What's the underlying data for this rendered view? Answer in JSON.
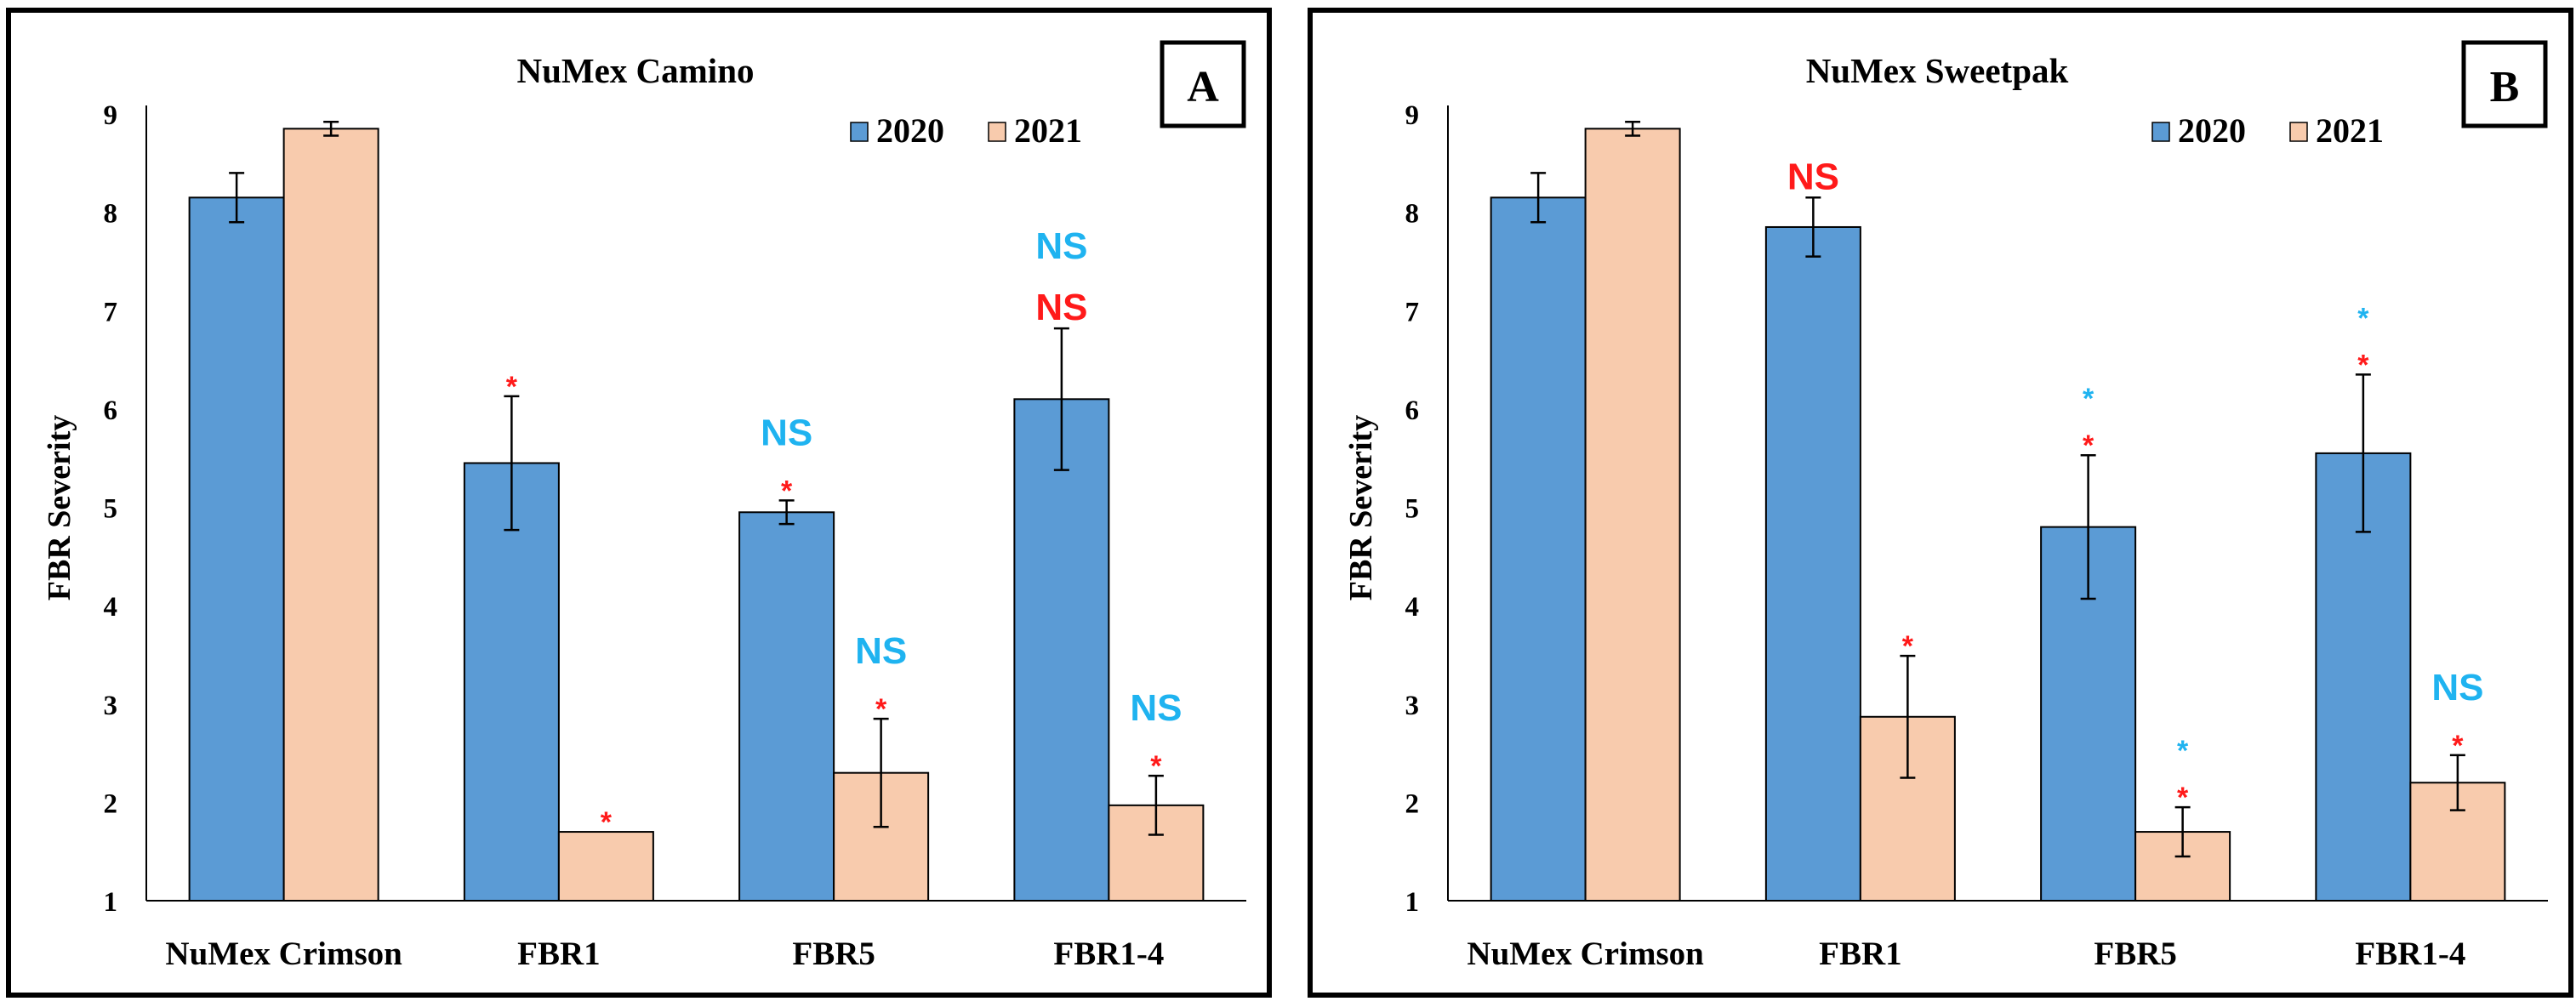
{
  "colors": {
    "series_2020": "#5b9bd5",
    "series_2021": "#f8cbad",
    "ns_blue": "#1fb3f0",
    "sig_red": "#ff1a1a"
  },
  "chart_data": [
    {
      "type": "bar",
      "panel_label": "A",
      "title": "NuMex Camino",
      "xlabel": "",
      "ylabel": "FBR Severity",
      "ylim": [
        1,
        9
      ],
      "yticks": [
        "1",
        "2",
        "3",
        "4",
        "5",
        "6",
        "7",
        "8",
        "9"
      ],
      "categories": [
        "NuMex Crimson",
        "FBR1",
        "FBR5",
        "FBR1-4"
      ],
      "legend": [
        "2020",
        "2021"
      ],
      "series": [
        {
          "name": "2020",
          "values": [
            8.15,
            5.45,
            4.95,
            6.1
          ],
          "errors": [
            0.25,
            0.68,
            0.12,
            0.72
          ]
        },
        {
          "name": "2021",
          "values": [
            8.85,
            1.7,
            2.3,
            1.97
          ],
          "errors": [
            0.07,
            0.0,
            0.55,
            0.3
          ]
        }
      ],
      "annotations": [
        {
          "category": 1,
          "series": 0,
          "marks": [
            {
              "text": "*",
              "color": "red"
            }
          ]
        },
        {
          "category": 1,
          "series": 1,
          "marks": [
            {
              "text": "*",
              "color": "red"
            }
          ]
        },
        {
          "category": 2,
          "series": 0,
          "marks": [
            {
              "text": "*",
              "color": "red"
            },
            {
              "text": "NS",
              "color": "blue"
            }
          ]
        },
        {
          "category": 2,
          "series": 1,
          "marks": [
            {
              "text": "*",
              "color": "red"
            },
            {
              "text": "NS",
              "color": "blue"
            }
          ]
        },
        {
          "category": 3,
          "series": 0,
          "marks": [
            {
              "text": "NS",
              "color": "red"
            },
            {
              "text": "NS",
              "color": "blue"
            }
          ]
        },
        {
          "category": 3,
          "series": 1,
          "marks": [
            {
              "text": "*",
              "color": "red"
            },
            {
              "text": "NS",
              "color": "blue"
            }
          ]
        }
      ]
    },
    {
      "type": "bar",
      "panel_label": "B",
      "title": "NuMex Sweetpak",
      "xlabel": "",
      "ylabel": "FBR Severity",
      "ylim": [
        1,
        9
      ],
      "yticks": [
        "1",
        "2",
        "3",
        "4",
        "5",
        "6",
        "7",
        "8",
        "9"
      ],
      "categories": [
        "NuMex Crimson",
        "FBR1",
        "FBR5",
        "FBR1-4"
      ],
      "legend": [
        "2020",
        "2021"
      ],
      "series": [
        {
          "name": "2020",
          "values": [
            8.15,
            7.85,
            4.8,
            5.55
          ],
          "errors": [
            0.25,
            0.3,
            0.73,
            0.8
          ]
        },
        {
          "name": "2021",
          "values": [
            8.85,
            2.87,
            1.7,
            2.2
          ],
          "errors": [
            0.07,
            0.62,
            0.25,
            0.28
          ]
        }
      ],
      "annotations": [
        {
          "category": 1,
          "series": 0,
          "marks": [
            {
              "text": "NS",
              "color": "red"
            }
          ]
        },
        {
          "category": 1,
          "series": 1,
          "marks": [
            {
              "text": "*",
              "color": "red"
            }
          ]
        },
        {
          "category": 2,
          "series": 0,
          "marks": [
            {
              "text": "*",
              "color": "red"
            },
            {
              "text": "*",
              "color": "blue"
            }
          ]
        },
        {
          "category": 2,
          "series": 1,
          "marks": [
            {
              "text": "*",
              "color": "red"
            },
            {
              "text": "*",
              "color": "blue"
            }
          ]
        },
        {
          "category": 3,
          "series": 0,
          "marks": [
            {
              "text": "*",
              "color": "red"
            },
            {
              "text": "*",
              "color": "blue"
            }
          ]
        },
        {
          "category": 3,
          "series": 1,
          "marks": [
            {
              "text": "*",
              "color": "red"
            },
            {
              "text": "NS",
              "color": "blue"
            }
          ]
        }
      ]
    }
  ]
}
